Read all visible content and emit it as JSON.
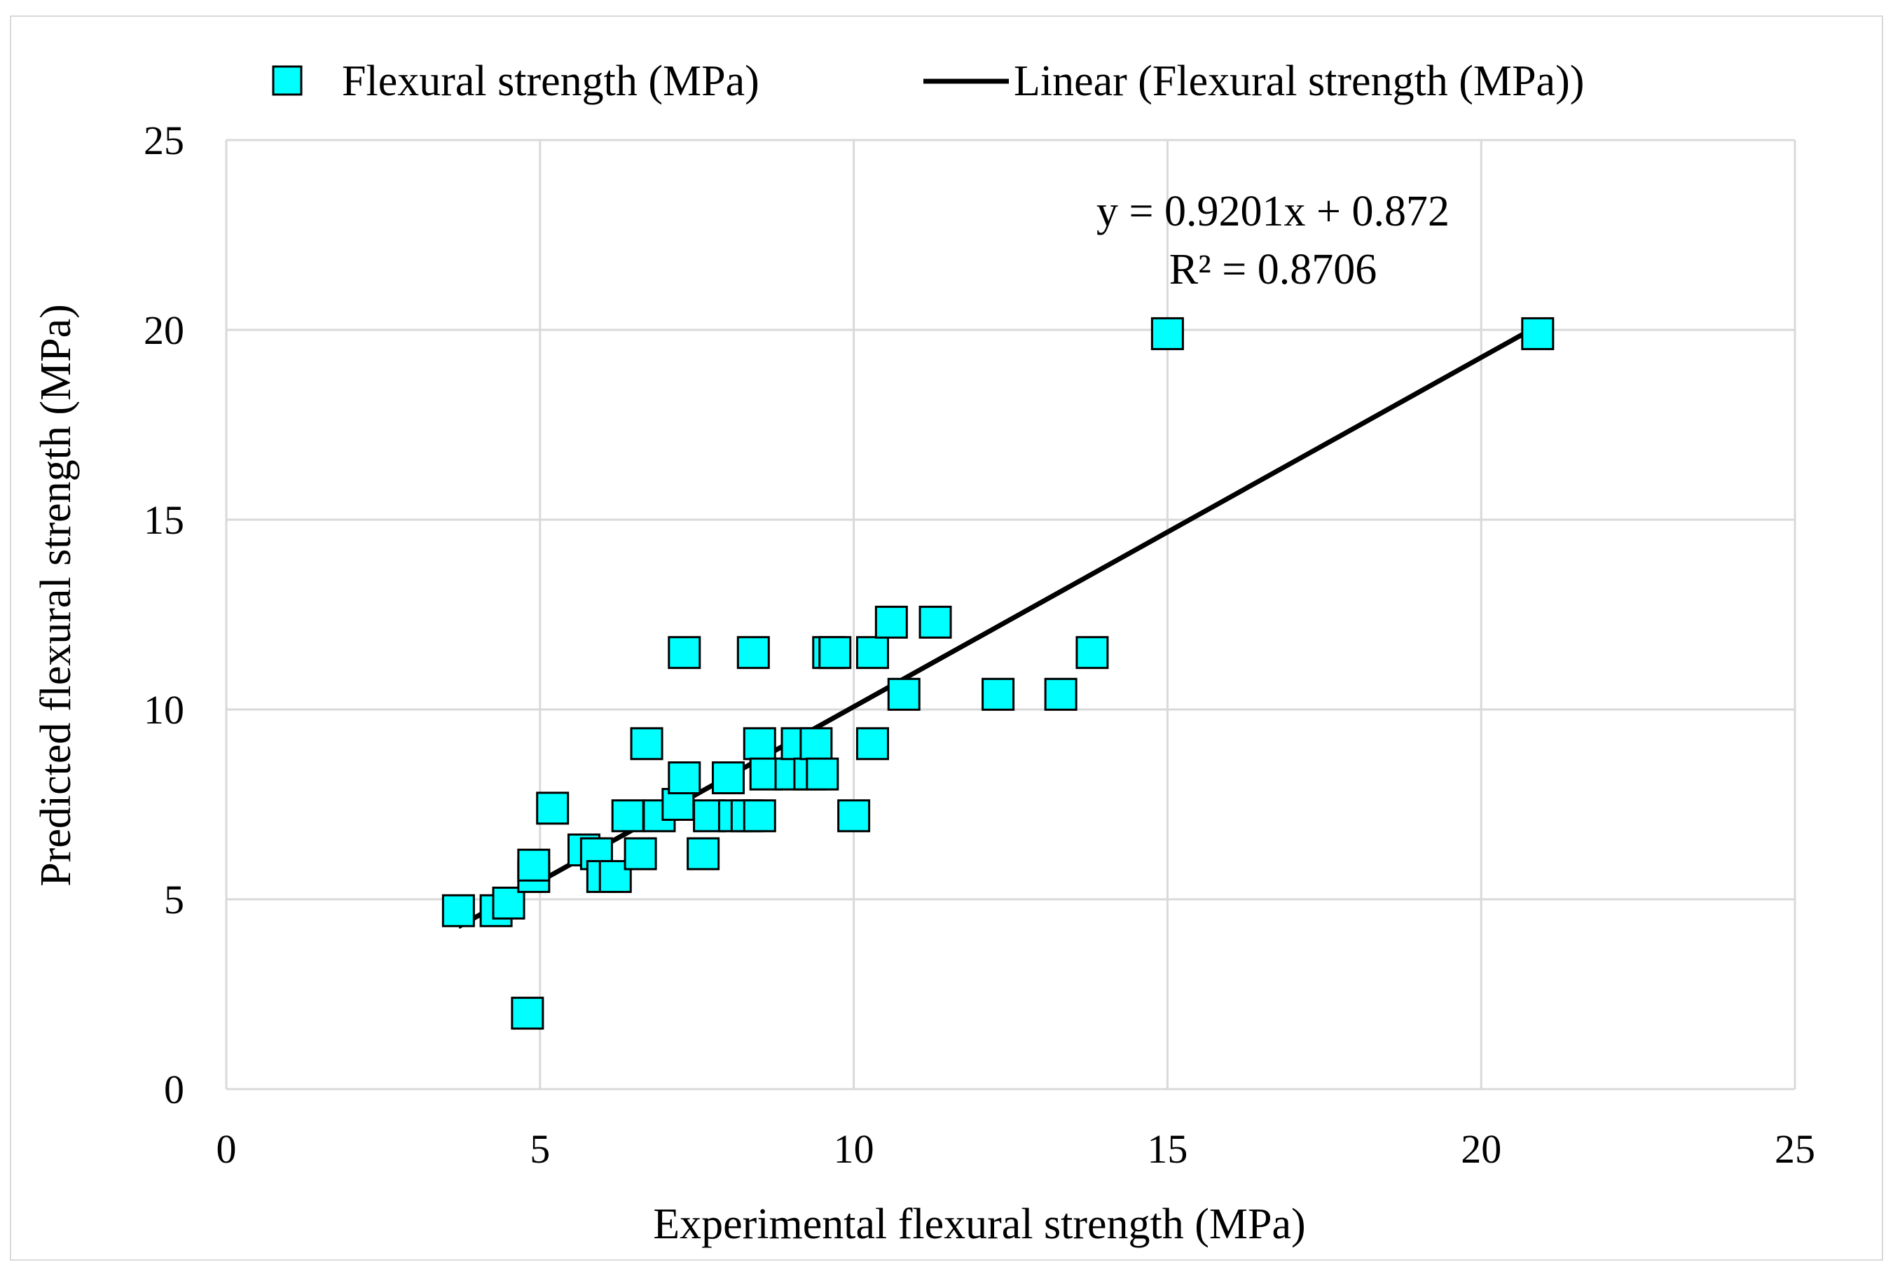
{
  "chart_data": {
    "type": "scatter",
    "title": "",
    "xlabel": "Experimental flexural strength (MPa)",
    "ylabel": "Predicted flexural strength (MPa)",
    "xlim": [
      0,
      25
    ],
    "ylim": [
      0,
      25
    ],
    "xticks": [
      0,
      5,
      10,
      15,
      20,
      25
    ],
    "yticks": [
      0,
      5,
      10,
      15,
      20,
      25
    ],
    "grid": true,
    "legend_position": "top",
    "series": [
      {
        "name": "Flexural strength (MPa)",
        "marker": "square",
        "color": "#00FFFF",
        "points": [
          {
            "x": 3.7,
            "y": 4.7
          },
          {
            "x": 4.3,
            "y": 4.7
          },
          {
            "x": 4.5,
            "y": 4.9
          },
          {
            "x": 4.8,
            "y": 2.0
          },
          {
            "x": 4.9,
            "y": 5.6
          },
          {
            "x": 4.9,
            "y": 5.9
          },
          {
            "x": 5.2,
            "y": 7.4
          },
          {
            "x": 5.7,
            "y": 6.3
          },
          {
            "x": 5.9,
            "y": 6.2
          },
          {
            "x": 6.0,
            "y": 5.6
          },
          {
            "x": 6.2,
            "y": 5.6
          },
          {
            "x": 6.4,
            "y": 7.2
          },
          {
            "x": 6.6,
            "y": 6.2
          },
          {
            "x": 6.7,
            "y": 9.1
          },
          {
            "x": 6.9,
            "y": 7.2
          },
          {
            "x": 7.2,
            "y": 7.5
          },
          {
            "x": 7.3,
            "y": 11.5
          },
          {
            "x": 7.3,
            "y": 8.2
          },
          {
            "x": 7.6,
            "y": 6.2
          },
          {
            "x": 7.7,
            "y": 7.2
          },
          {
            "x": 8.0,
            "y": 8.2
          },
          {
            "x": 8.1,
            "y": 7.2
          },
          {
            "x": 8.3,
            "y": 7.2
          },
          {
            "x": 8.4,
            "y": 11.5
          },
          {
            "x": 8.5,
            "y": 9.1
          },
          {
            "x": 8.5,
            "y": 7.2
          },
          {
            "x": 8.6,
            "y": 8.3
          },
          {
            "x": 9.0,
            "y": 8.3
          },
          {
            "x": 9.1,
            "y": 9.1
          },
          {
            "x": 9.3,
            "y": 8.3
          },
          {
            "x": 9.4,
            "y": 9.1
          },
          {
            "x": 9.5,
            "y": 8.3
          },
          {
            "x": 9.6,
            "y": 11.5
          },
          {
            "x": 9.7,
            "y": 11.5
          },
          {
            "x": 10.0,
            "y": 7.2
          },
          {
            "x": 10.3,
            "y": 9.1
          },
          {
            "x": 10.3,
            "y": 11.5
          },
          {
            "x": 10.6,
            "y": 12.3
          },
          {
            "x": 10.8,
            "y": 10.4
          },
          {
            "x": 11.3,
            "y": 12.3
          },
          {
            "x": 12.3,
            "y": 10.4
          },
          {
            "x": 13.3,
            "y": 10.4
          },
          {
            "x": 13.8,
            "y": 11.5
          },
          {
            "x": 15.0,
            "y": 19.9
          },
          {
            "x": 20.9,
            "y": 19.9
          }
        ]
      },
      {
        "name": "Linear (Flexural strength (MPa))",
        "type": "trendline",
        "color": "#000000",
        "slope": 0.9201,
        "intercept": 0.872,
        "x_range": [
          3.7,
          20.9
        ]
      }
    ],
    "annotations": {
      "equation": "y = 0.9201x + 0.872",
      "r_squared": "R² = 0.8706"
    }
  }
}
